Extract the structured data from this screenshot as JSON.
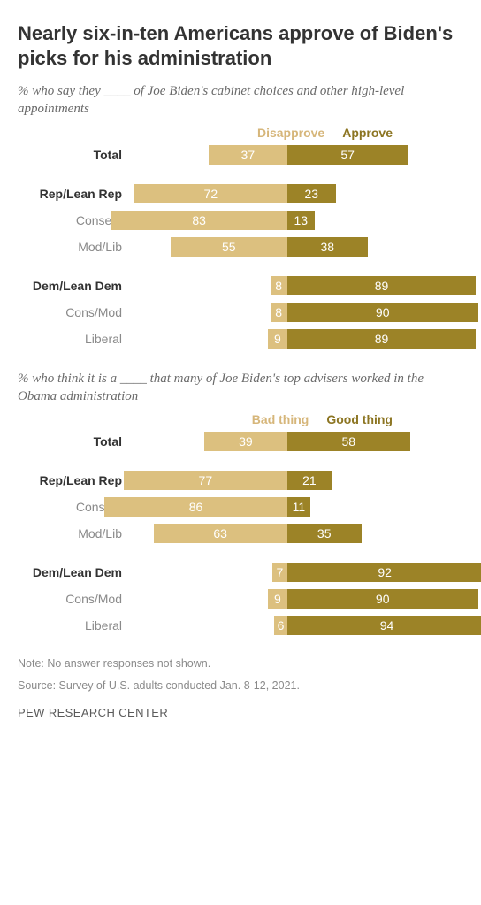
{
  "title": "Nearly six-in-ten Americans approve of Biden's picks for his administration",
  "chart1": {
    "subtitle": "% who say they ____ of Joe Biden's cabinet choices and other high-level appointments",
    "neg_label": "Disapprove",
    "pos_label": "Approve",
    "neg_color": "#dcc07f",
    "pos_color": "#9c8327",
    "axis_pct": 47,
    "unit_scale": 2.4,
    "rows": [
      {
        "label": "Total",
        "bold": true,
        "neg": 37,
        "pos": 57,
        "gap_after": true
      },
      {
        "label": "Rep/Lean Rep",
        "bold": true,
        "neg": 72,
        "pos": 23
      },
      {
        "label": "Conserv",
        "bold": false,
        "neg": 83,
        "pos": 13
      },
      {
        "label": "Mod/Lib",
        "bold": false,
        "neg": 55,
        "pos": 38,
        "gap_after": true
      },
      {
        "label": "Dem/Lean Dem",
        "bold": true,
        "neg": 8,
        "pos": 89
      },
      {
        "label": "Cons/Mod",
        "bold": false,
        "neg": 8,
        "pos": 90
      },
      {
        "label": "Liberal",
        "bold": false,
        "neg": 9,
        "pos": 89
      }
    ]
  },
  "chart2": {
    "subtitle": "% who think it is a ____ that many of Joe Biden's top advisers worked in the Obama administration",
    "neg_label": "Bad thing",
    "pos_label": "Good thing",
    "neg_color": "#dcc07f",
    "pos_color": "#9c8327",
    "axis_pct": 47,
    "unit_scale": 2.4,
    "rows": [
      {
        "label": "Total",
        "bold": true,
        "neg": 39,
        "pos": 58,
        "gap_after": true
      },
      {
        "label": "Rep/Lean Rep",
        "bold": true,
        "neg": 77,
        "pos": 21
      },
      {
        "label": "Conserv",
        "bold": false,
        "neg": 86,
        "pos": 11
      },
      {
        "label": "Mod/Lib",
        "bold": false,
        "neg": 63,
        "pos": 35,
        "gap_after": true
      },
      {
        "label": "Dem/Lean Dem",
        "bold": true,
        "neg": 7,
        "pos": 92
      },
      {
        "label": "Cons/Mod",
        "bold": false,
        "neg": 9,
        "pos": 90
      },
      {
        "label": "Liberal",
        "bold": false,
        "neg": 6,
        "pos": 94
      }
    ]
  },
  "note1": "Note: No answer responses not shown.",
  "note2": "Source: Survey of U.S. adults conducted Jan. 8-12, 2021.",
  "footer": "PEW RESEARCH CENTER"
}
